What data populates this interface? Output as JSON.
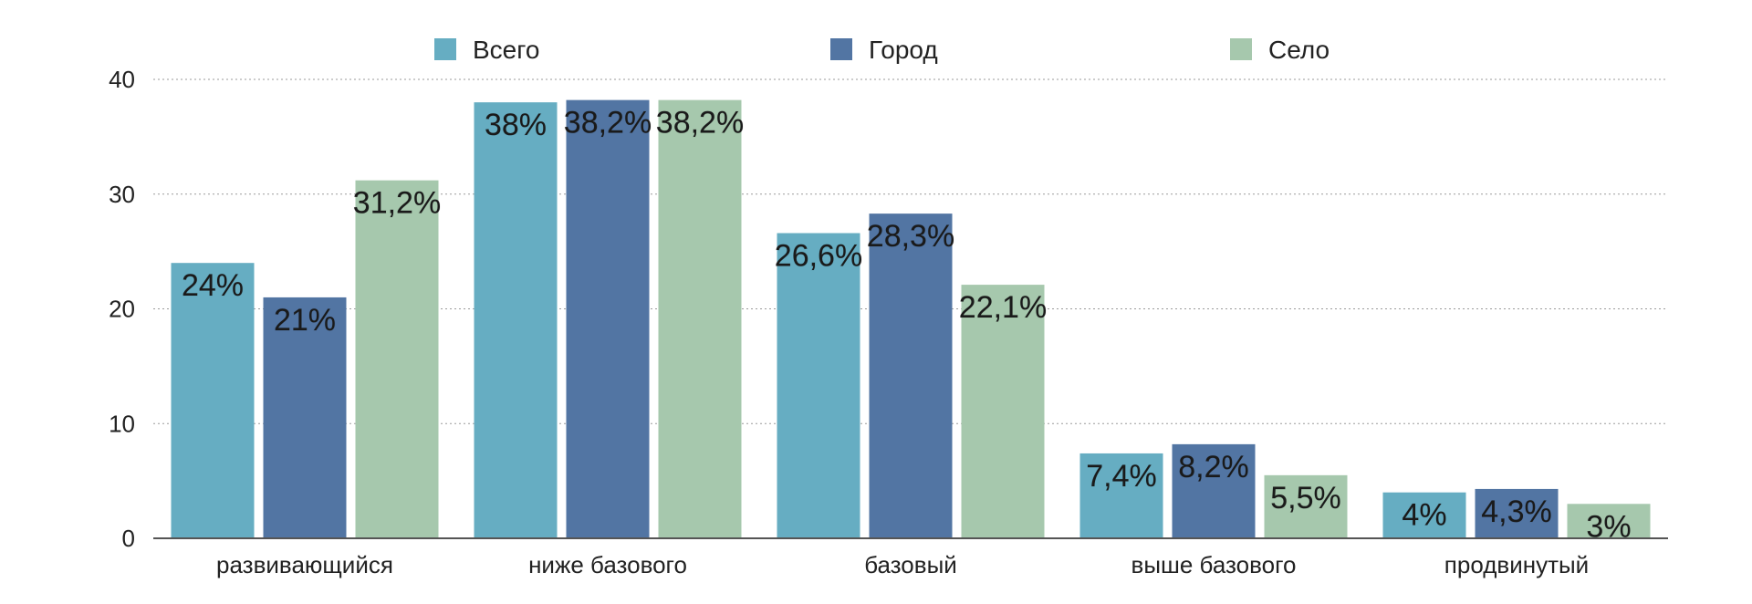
{
  "chart_data": {
    "type": "bar",
    "title": "",
    "xlabel": "",
    "ylabel": "",
    "ylim": [
      0,
      40
    ],
    "yticks": [
      0,
      10,
      20,
      30,
      40
    ],
    "grid": true,
    "legend_position": "top",
    "categories": [
      "развивающийся",
      "ниже базового",
      "базовый",
      "выше базового",
      "продвинутый"
    ],
    "series": [
      {
        "name": "Всего",
        "color": "#66adc2",
        "values": [
          24,
          38,
          26.6,
          7.4,
          4
        ],
        "labels": [
          "24%",
          "38%",
          "26,6%",
          "7,4%",
          "4%"
        ]
      },
      {
        "name": "Город",
        "color": "#5275a3",
        "values": [
          21,
          38.2,
          28.3,
          8.2,
          4.3
        ],
        "labels": [
          "21%",
          "38,2%",
          "28,3%",
          "8,2%",
          "4,3%"
        ]
      },
      {
        "name": "Село",
        "color": "#a6c8ad",
        "values": [
          31.2,
          38.2,
          22.1,
          5.5,
          3
        ],
        "labels": [
          "31,2%",
          "38,2%",
          "22,1%",
          "5,5%",
          "3%"
        ]
      }
    ]
  }
}
